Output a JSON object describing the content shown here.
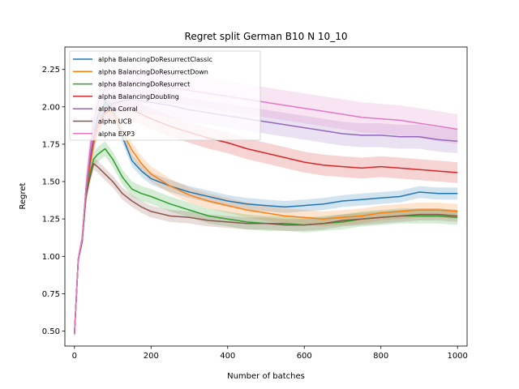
{
  "chart_data": {
    "type": "line",
    "title": "Regret split German B10 N 10_10",
    "xlabel": "Number of batches",
    "ylabel": "Regret",
    "xlim": [
      -25,
      1025
    ],
    "ylim": [
      0.4,
      2.4
    ],
    "x_ticks": [
      0,
      200,
      400,
      600,
      800,
      1000
    ],
    "x_tick_labels": [
      "0",
      "200",
      "400",
      "600",
      "800",
      "1000"
    ],
    "y_ticks": [
      0.5,
      0.75,
      1.0,
      1.25,
      1.5,
      1.75,
      2.0,
      2.25
    ],
    "y_tick_labels": [
      "0.50",
      "0.75",
      "1.00",
      "1.25",
      "1.50",
      "1.75",
      "2.00",
      "2.25"
    ],
    "grid": false,
    "legend_position": "top-left",
    "x": [
      0,
      10,
      20,
      30,
      40,
      50,
      60,
      80,
      100,
      125,
      150,
      175,
      200,
      250,
      300,
      350,
      400,
      450,
      500,
      550,
      600,
      650,
      700,
      750,
      800,
      850,
      900,
      950,
      1000
    ],
    "series": [
      {
        "name": "alpha BalancingDoResurrectClassic",
        "color": "#1f77b4",
        "values": [
          0.48,
          0.98,
          1.1,
          1.4,
          1.6,
          1.8,
          1.93,
          2.03,
          1.98,
          1.8,
          1.64,
          1.57,
          1.52,
          1.47,
          1.43,
          1.4,
          1.37,
          1.35,
          1.34,
          1.33,
          1.34,
          1.35,
          1.37,
          1.38,
          1.39,
          1.4,
          1.43,
          1.42,
          1.42
        ],
        "band": 0.04
      },
      {
        "name": "alpha BalancingDoResurrectDown",
        "color": "#ff7f0e",
        "values": [
          0.48,
          0.98,
          1.1,
          1.4,
          1.6,
          1.75,
          1.85,
          1.97,
          1.96,
          1.83,
          1.71,
          1.62,
          1.55,
          1.47,
          1.41,
          1.37,
          1.34,
          1.31,
          1.29,
          1.27,
          1.26,
          1.25,
          1.26,
          1.27,
          1.29,
          1.3,
          1.31,
          1.31,
          1.3
        ],
        "band": 0.05
      },
      {
        "name": "alpha BalancingDoResurrect",
        "color": "#2ca02c",
        "values": [
          0.48,
          0.98,
          1.1,
          1.4,
          1.55,
          1.65,
          1.68,
          1.72,
          1.65,
          1.53,
          1.45,
          1.42,
          1.4,
          1.35,
          1.31,
          1.27,
          1.25,
          1.23,
          1.22,
          1.22,
          1.21,
          1.22,
          1.23,
          1.25,
          1.26,
          1.27,
          1.27,
          1.27,
          1.26
        ],
        "band": 0.05
      },
      {
        "name": "alpha BalancingDoubling",
        "color": "#d62728",
        "values": [
          0.48,
          0.98,
          1.1,
          1.45,
          1.62,
          1.78,
          1.88,
          1.96,
          1.98,
          1.98,
          1.98,
          1.95,
          1.92,
          1.87,
          1.83,
          1.79,
          1.76,
          1.72,
          1.69,
          1.66,
          1.63,
          1.61,
          1.6,
          1.59,
          1.6,
          1.59,
          1.58,
          1.57,
          1.56
        ],
        "band": 0.07
      },
      {
        "name": "alpha Corral",
        "color": "#9467bd",
        "values": [
          0.48,
          0.98,
          1.12,
          1.45,
          1.65,
          1.8,
          1.9,
          1.98,
          2.02,
          2.04,
          2.05,
          2.04,
          2.03,
          2.01,
          1.98,
          1.96,
          1.94,
          1.92,
          1.9,
          1.88,
          1.86,
          1.84,
          1.82,
          1.81,
          1.81,
          1.8,
          1.8,
          1.78,
          1.77
        ],
        "band": 0.08
      },
      {
        "name": "alpha UCB",
        "color": "#8c564b",
        "values": [
          0.48,
          0.98,
          1.1,
          1.4,
          1.52,
          1.62,
          1.6,
          1.55,
          1.5,
          1.42,
          1.37,
          1.33,
          1.3,
          1.27,
          1.26,
          1.24,
          1.23,
          1.22,
          1.22,
          1.21,
          1.21,
          1.22,
          1.24,
          1.25,
          1.26,
          1.27,
          1.28,
          1.28,
          1.27
        ],
        "band": 0.04
      },
      {
        "name": "alpha EXP3",
        "color": "#e377c2",
        "values": [
          0.48,
          0.98,
          1.12,
          1.45,
          1.7,
          1.9,
          2.02,
          2.12,
          2.15,
          2.16,
          2.17,
          2.16,
          2.15,
          2.13,
          2.11,
          2.09,
          2.07,
          2.05,
          2.03,
          2.01,
          1.99,
          1.97,
          1.95,
          1.93,
          1.92,
          1.91,
          1.89,
          1.87,
          1.85
        ],
        "band": 0.1
      }
    ]
  }
}
